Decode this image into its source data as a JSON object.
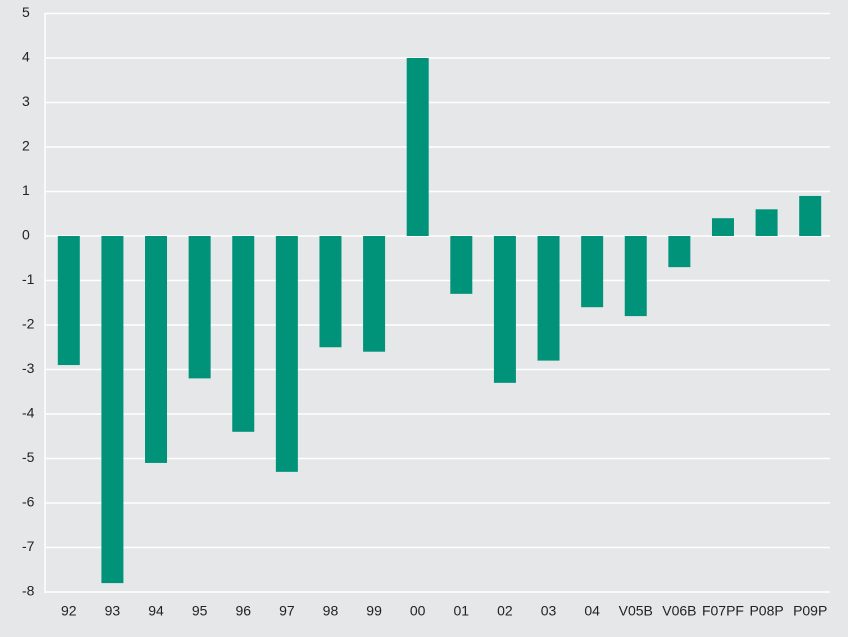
{
  "chart_data": {
    "type": "bar",
    "categories": [
      "92",
      "93",
      "94",
      "95",
      "96",
      "97",
      "98",
      "99",
      "00",
      "01",
      "02",
      "03",
      "04",
      "V05B",
      "V06B",
      "F07PF",
      "P08P",
      "P09P"
    ],
    "values": [
      -2.9,
      -7.8,
      -5.1,
      -3.2,
      -4.4,
      -5.3,
      -2.5,
      -2.6,
      4.0,
      -1.3,
      -3.3,
      -2.8,
      -1.6,
      -1.8,
      -0.7,
      0.4,
      0.6,
      0.9
    ],
    "color": "#00937a",
    "ylim": [
      -8,
      5
    ],
    "yticks": [
      -8,
      -7,
      -6,
      -5,
      -4,
      -3,
      -2,
      -1,
      0,
      1,
      2,
      3,
      4,
      5
    ],
    "grid": true
  }
}
